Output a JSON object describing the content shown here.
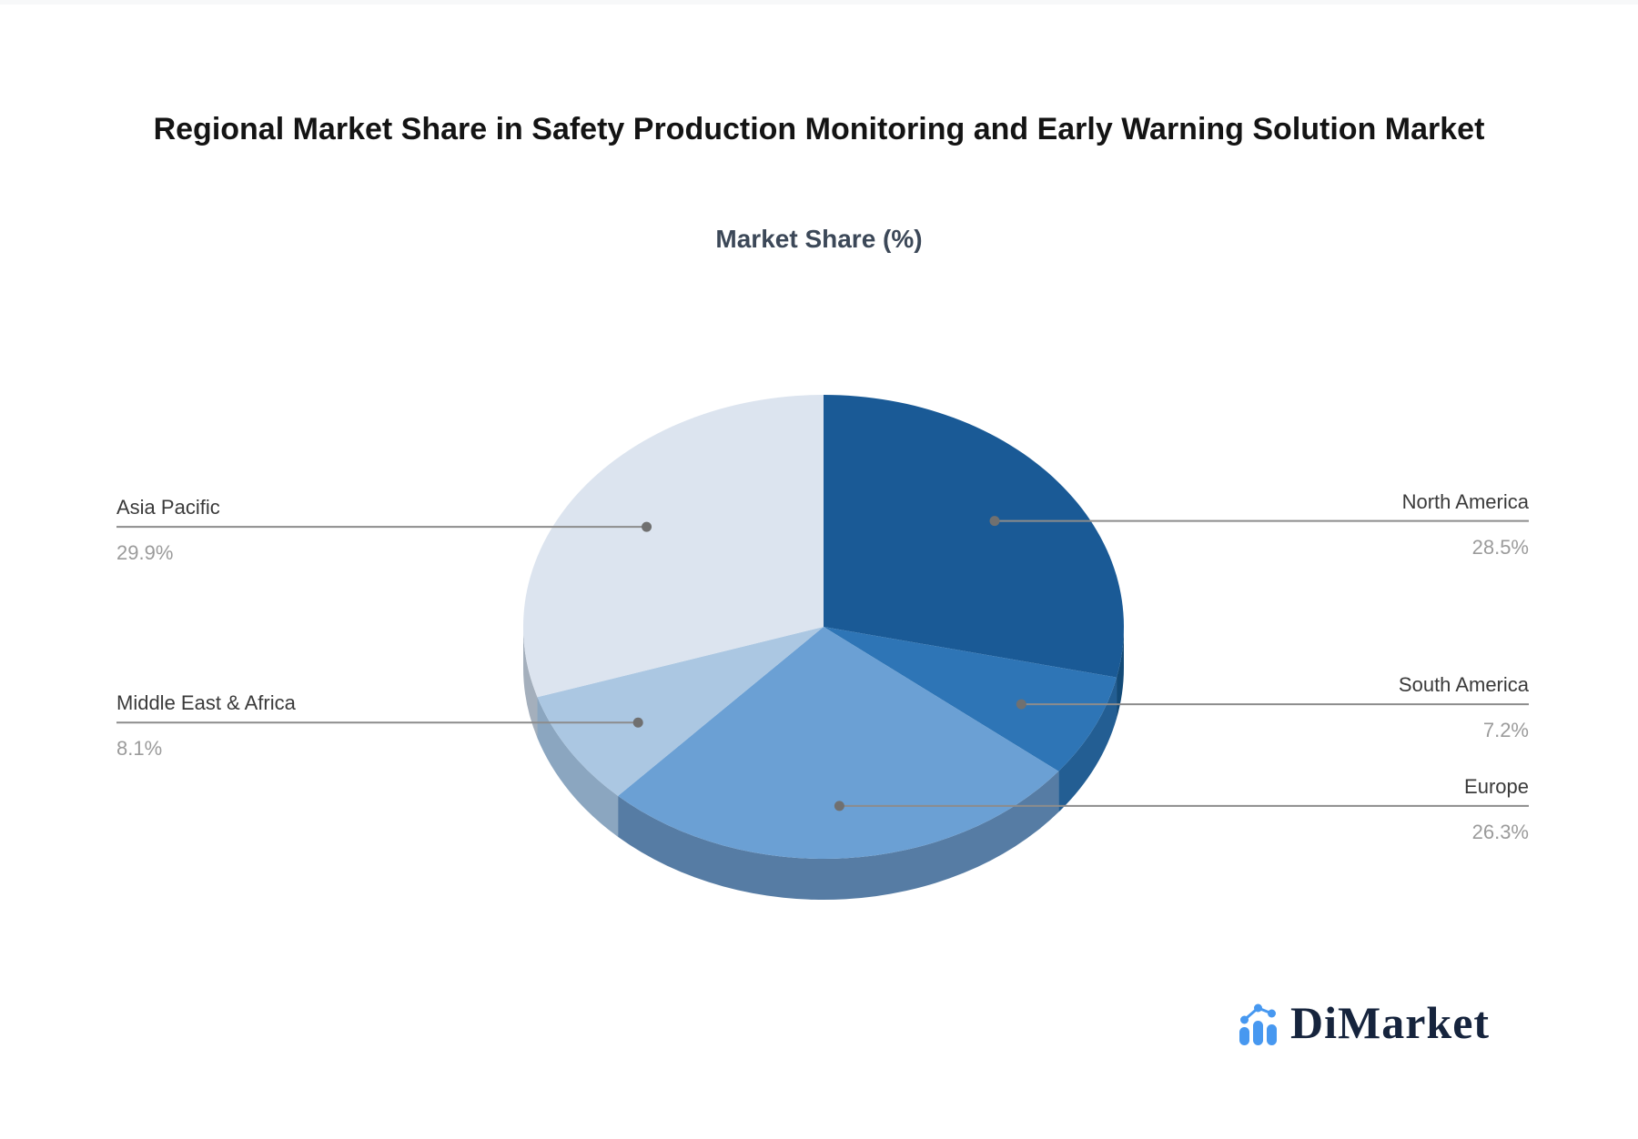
{
  "title": "Regional Market Share in Safety Production Monitoring and Early Warning Solution Market",
  "subtitle": "Market Share (%)",
  "logo": {
    "text": "DiMarket",
    "icon": "bar-chart-logo-icon",
    "icon_color": "#4798f0",
    "text_color": "#16243d"
  },
  "chart_data": {
    "type": "pie",
    "style": "3d-pie",
    "title": "Regional Market Share in Safety Production Monitoring and Early Warning Solution Market",
    "subtitle": "Market Share (%)",
    "unit": "%",
    "start_angle_deg": -90,
    "direction": "clockwise",
    "legend_position": "none",
    "slices": [
      {
        "label": "North America",
        "value": 28.5,
        "display": "28.5%",
        "color": "#1a5a96",
        "side_color": "#134a77"
      },
      {
        "label": "South America",
        "value": 7.2,
        "display": "7.2%",
        "color": "#2e75b6",
        "side_color": "#235e93"
      },
      {
        "label": "Europe",
        "value": 26.3,
        "display": "26.3%",
        "color": "#6ba0d4",
        "side_color": "#567ca4"
      },
      {
        "label": "Middle East & Africa",
        "value": 8.1,
        "display": "8.1%",
        "color": "#abc7e2",
        "side_color": "#8ba6c0"
      },
      {
        "label": "Asia Pacific",
        "value": 29.9,
        "display": "29.9%",
        "color": "#dce4ef",
        "side_color": "#a4afbc"
      }
    ],
    "label_name_color": "#3a3a3a",
    "label_value_color": "#9b9b9b",
    "leader_line_color": "#8c8c8c",
    "leader_dot_color": "#707070"
  }
}
